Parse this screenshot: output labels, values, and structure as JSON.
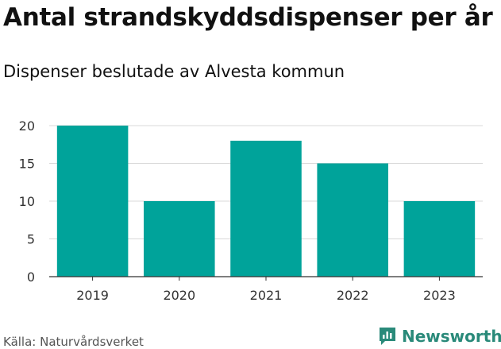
{
  "header": {
    "title": "Antal strandskyddsdispenser per år",
    "subtitle": "Dispenser beslutade av Alvesta kommun"
  },
  "footer": {
    "source": "Källa: Naturvårdsverket",
    "brand": "Newsworthy",
    "brand_icon": "newsworthy-logo-icon"
  },
  "colors": {
    "bar": "#00a39a",
    "grid": "#d9d9d9",
    "brand": "#2a8a7a"
  },
  "chart_data": {
    "type": "bar",
    "title": "Antal strandskyddsdispenser per år",
    "subtitle": "Dispenser beslutade av Alvesta kommun",
    "categories": [
      "2019",
      "2020",
      "2021",
      "2022",
      "2023"
    ],
    "values": [
      20,
      10,
      18,
      15,
      10
    ],
    "xlabel": "",
    "ylabel": "",
    "ylim": [
      0,
      20
    ],
    "yticks": [
      0,
      5,
      10,
      15,
      20
    ],
    "grid": true,
    "legend": "none"
  }
}
